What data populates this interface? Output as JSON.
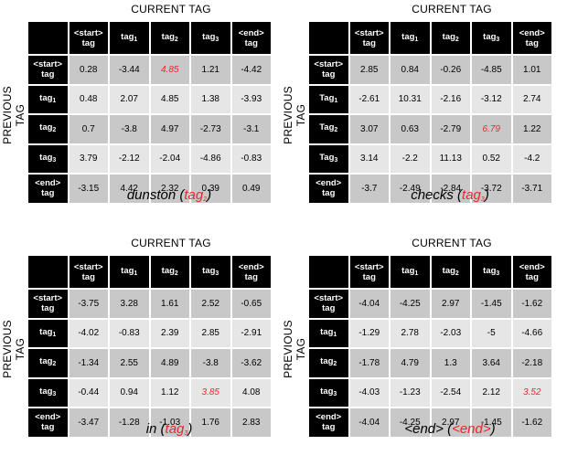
{
  "labels": {
    "current_tag": "CURRENT TAG",
    "previous_tag": "PREVIOUS TAG"
  },
  "col_headers": [
    [
      "<start>",
      "tag"
    ],
    [
      "tag",
      "1"
    ],
    [
      "tag",
      "2"
    ],
    [
      "tag",
      "3"
    ],
    [
      "<end>",
      "tag"
    ]
  ],
  "panels": [
    {
      "caption": {
        "word": "dunston",
        "tag_text": "tag",
        "tag_sub": "2"
      },
      "row_headers": [
        [
          "<start>",
          "tag",
          ""
        ],
        [
          "tag",
          "",
          "1"
        ],
        [
          "tag",
          "",
          "2"
        ],
        [
          "tag",
          "",
          "3"
        ],
        [
          "<end>",
          "tag",
          ""
        ]
      ],
      "rows": [
        [
          "0.28",
          "-3.44",
          "4.85",
          "1.21",
          "-4.42"
        ],
        [
          "0.48",
          "2.07",
          "4.85",
          "1.38",
          "-3.93"
        ],
        [
          "0.7",
          "-3.8",
          "4.97",
          "-2.73",
          "-3.1"
        ],
        [
          "3.79",
          "-2.12",
          "-2.04",
          "-4.86",
          "-0.83"
        ],
        [
          "-3.15",
          "4.42",
          "2.32",
          "0.39",
          "0.49"
        ]
      ],
      "highlight": [
        0,
        2
      ]
    },
    {
      "caption": {
        "word": "checks",
        "tag_text": "tag",
        "tag_sub": "3"
      },
      "row_headers": [
        [
          "<start>",
          "tag",
          ""
        ],
        [
          "Tag",
          "",
          "1"
        ],
        [
          "Tag",
          "",
          "2"
        ],
        [
          "Tag",
          "",
          "3"
        ],
        [
          "<end>",
          "tag",
          ""
        ]
      ],
      "rows": [
        [
          "2.85",
          "0.84",
          "-0.26",
          "-4.85",
          "1.01"
        ],
        [
          "-2.61",
          "10.31",
          "-2.16",
          "-3.12",
          "2.74"
        ],
        [
          "3.07",
          "0.63",
          "-2.79",
          "6.79",
          "1.22"
        ],
        [
          "3.14",
          "-2.2",
          "11.13",
          "0.52",
          "-4.2"
        ],
        [
          "-3.7",
          "-2.49",
          "-2.84",
          "-3.72",
          "-3.71"
        ]
      ],
      "highlight": [
        2,
        3
      ]
    },
    {
      "caption": {
        "word": "in",
        "tag_text": "tag",
        "tag_sub": "3"
      },
      "row_headers": [
        [
          "<start>",
          "tag",
          ""
        ],
        [
          "tag",
          "",
          "1"
        ],
        [
          "tag",
          "",
          "2"
        ],
        [
          "tag",
          "",
          "3"
        ],
        [
          "<end>",
          "tag",
          ""
        ]
      ],
      "rows": [
        [
          "-3.75",
          "3.28",
          "1.61",
          "2.52",
          "-0.65"
        ],
        [
          "-4.02",
          "-0.83",
          "2.39",
          "2.85",
          "-2.91"
        ],
        [
          "-1.34",
          "2.55",
          "4.89",
          "-3.8",
          "-3.62"
        ],
        [
          "-0.44",
          "0.94",
          "1.12",
          "3.85",
          "4.08"
        ],
        [
          "-3.47",
          "-1.28",
          "-1.03",
          "1.76",
          "2.83"
        ]
      ],
      "highlight": [
        3,
        3
      ]
    },
    {
      "caption": {
        "word": "<end>",
        "tag_text": "<end>",
        "tag_sub": ""
      },
      "row_headers": [
        [
          "<start>",
          "tag",
          ""
        ],
        [
          "tag",
          "",
          "1"
        ],
        [
          "tag",
          "",
          "2"
        ],
        [
          "tag",
          "",
          "3"
        ],
        [
          "<end>",
          "tag",
          ""
        ]
      ],
      "rows": [
        [
          "-4.04",
          "-4.25",
          "2.97",
          "-1.45",
          "-1.62"
        ],
        [
          "-1.29",
          "2.78",
          "-2.03",
          "-5",
          "-4.66"
        ],
        [
          "-1.78",
          "4.79",
          "1.3",
          "3.64",
          "-2.18"
        ],
        [
          "-4.03",
          "-1.23",
          "-2.54",
          "2.12",
          "3.52"
        ],
        [
          "-4.04",
          "-4.25",
          "2.97",
          "-1.45",
          "-1.62"
        ]
      ],
      "highlight": [
        3,
        4
      ]
    }
  ]
}
